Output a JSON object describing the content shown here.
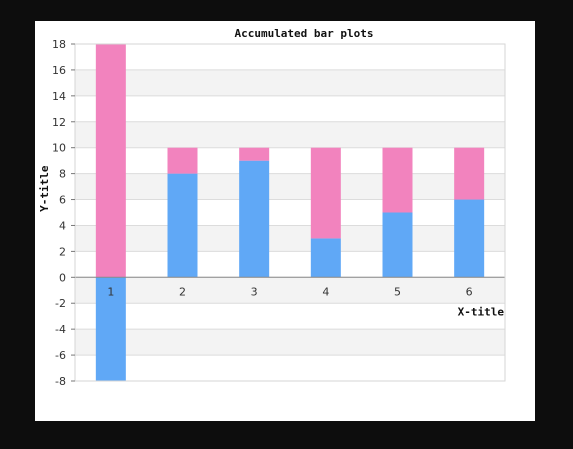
{
  "chart_data": {
    "type": "bar",
    "stacked": true,
    "title": "Accumulated bar plots",
    "xlabel": "X-title",
    "ylabel": "Y-title",
    "categories": [
      "1",
      "2",
      "3",
      "4",
      "5",
      "6"
    ],
    "series": [
      {
        "color": "#60a8f6",
        "values": [
          -8,
          8,
          9,
          3,
          5,
          6
        ]
      },
      {
        "color": "#f283be",
        "values": [
          18,
          2,
          1,
          7,
          5,
          4
        ]
      }
    ],
    "ylim": [
      -8,
      18
    ],
    "yticks": [
      -8,
      -6,
      -4,
      -2,
      0,
      2,
      4,
      6,
      8,
      10,
      12,
      14,
      16,
      18
    ],
    "grid": true,
    "band_colors": [
      "#ffffff",
      "#f3f3f3"
    ],
    "legend": "none"
  }
}
